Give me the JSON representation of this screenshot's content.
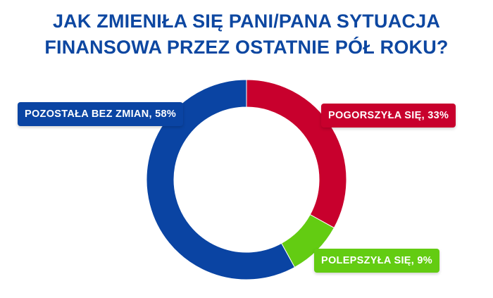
{
  "title": {
    "line1": "JAK ZMIENIŁA SIĘ PANI/PANA SYTUACJA",
    "line2": "FINANSOWA PRZEZ OSTATNIE PÓŁ ROKU?"
  },
  "chart_data": {
    "type": "pie",
    "donut": true,
    "title": "JAK ZMIENIŁA SIĘ PANI/PANA SYTUACJA FINANSOWA PRZEZ OSTATNIE PÓŁ ROKU?",
    "slices": [
      {
        "label": "POGORSZYŁA SIĘ",
        "value": 33,
        "display": "POGORSZYŁA SIĘ, 33%",
        "color": "#c8002d"
      },
      {
        "label": "POLEPSZYŁA SIĘ",
        "value": 9,
        "display": "POLEPSZYŁA SIĘ, 9%",
        "color": "#63cc12"
      },
      {
        "label": "POZOSTAŁA BEZ ZMIAN",
        "value": 58,
        "display": "POZOSTAŁA BEZ ZMIAN, 58%",
        "color": "#0a44a3"
      }
    ],
    "legend": "labels-around"
  }
}
